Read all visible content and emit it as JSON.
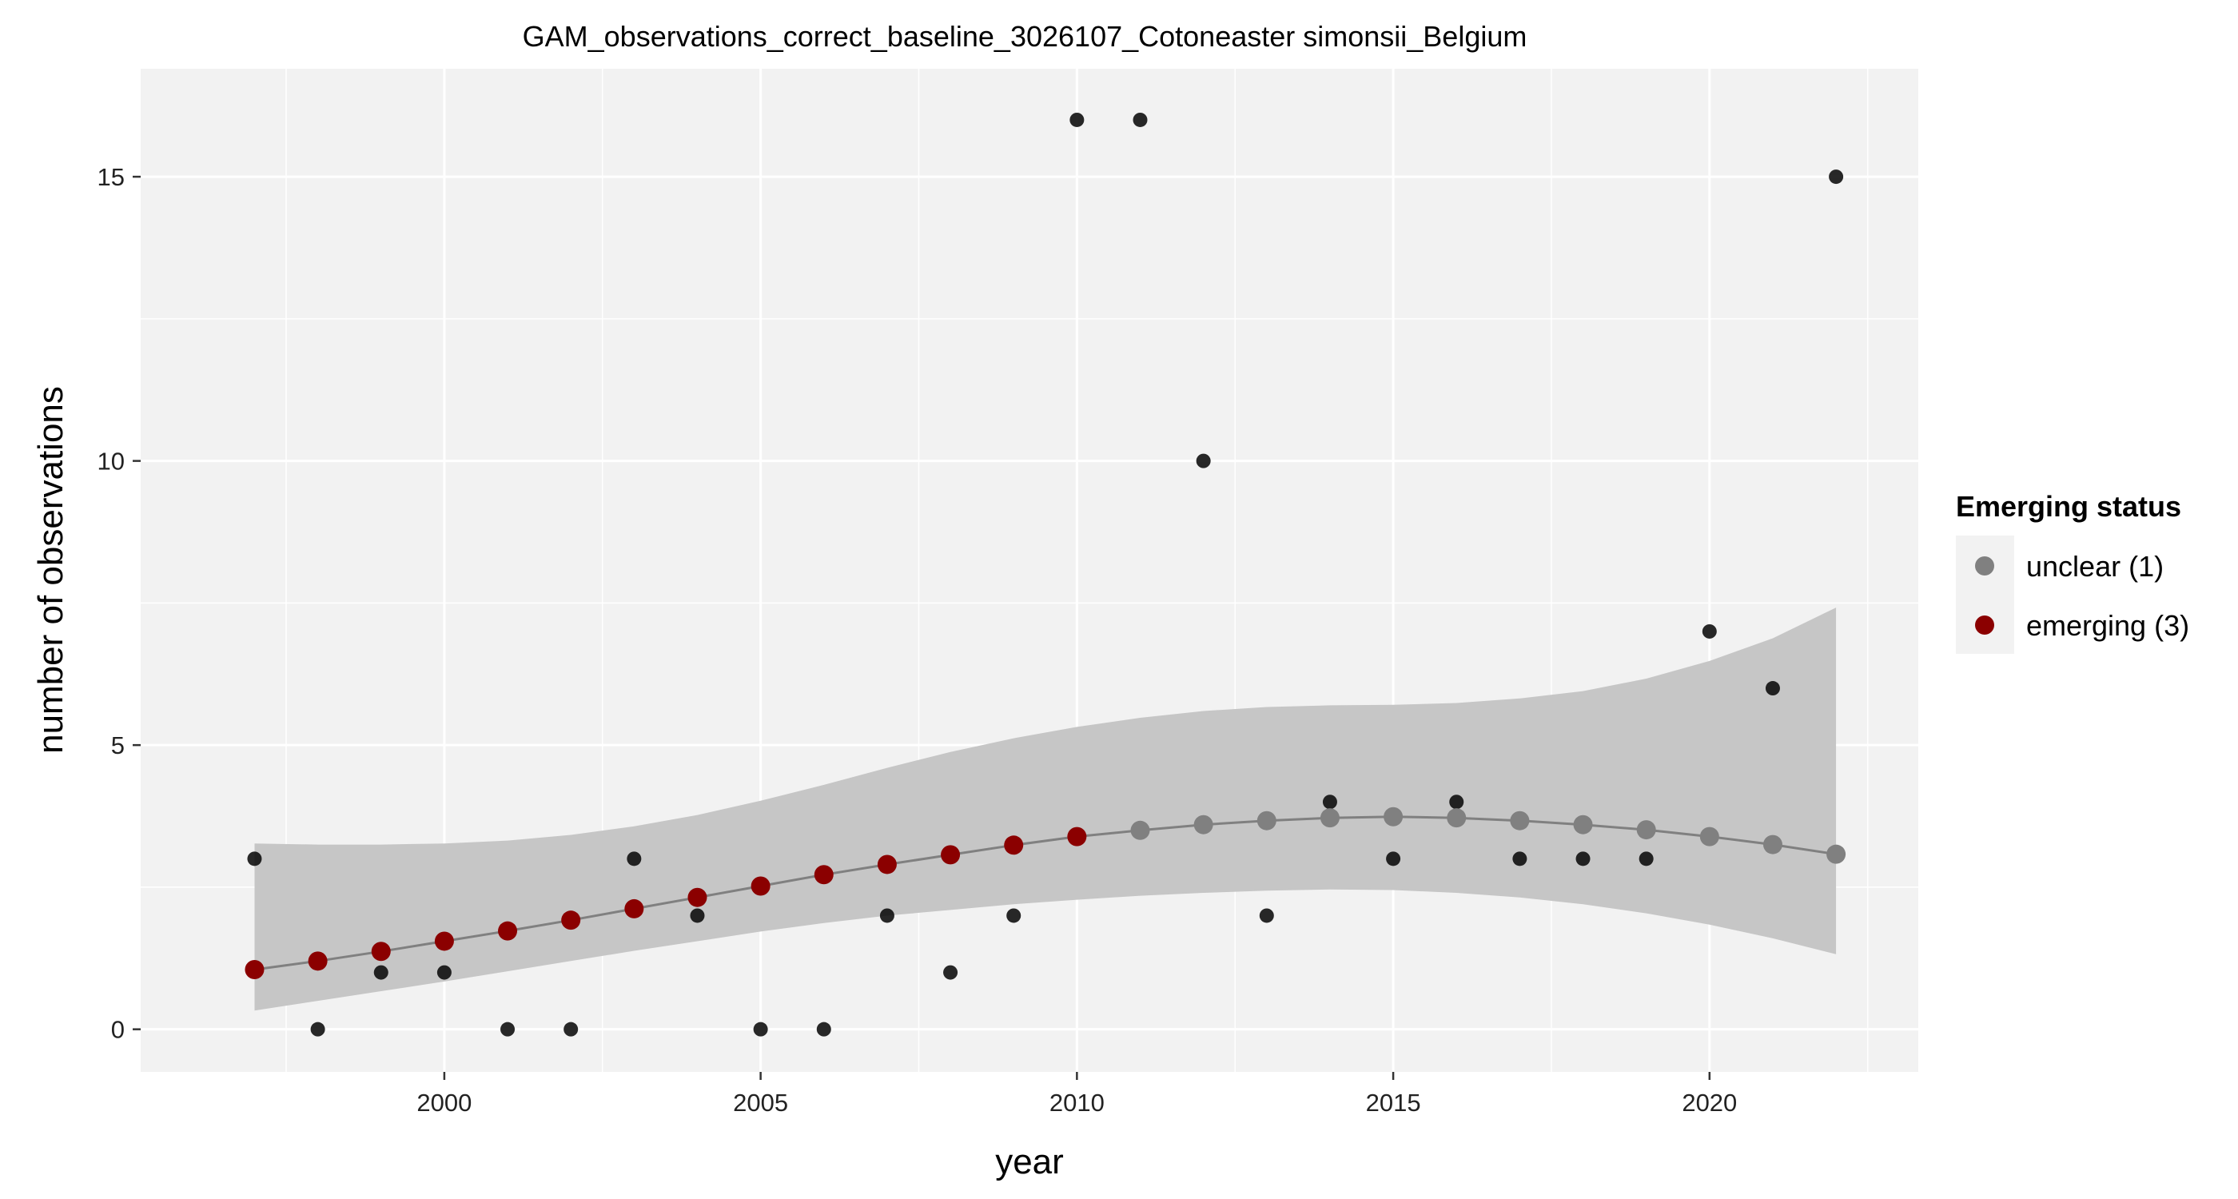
{
  "chart_data": {
    "type": "scatter",
    "title": "GAM_observations_correct_baseline_3026107_Cotoneaster simonsii_Belgium",
    "xlabel": "year",
    "ylabel": "number of observations",
    "xlim": [
      1995.2,
      2023.3
    ],
    "ylim": [
      -0.75,
      16.9
    ],
    "x_ticks": [
      2000,
      2005,
      2010,
      2015,
      2020
    ],
    "y_ticks": [
      0,
      5,
      10,
      15
    ],
    "grid": true,
    "legend_placement": "right",
    "legend": {
      "title": "Emerging status",
      "entries": [
        {
          "label": "unclear (1)",
          "color": "#808080"
        },
        {
          "label": "emerging (3)",
          "color": "#8b0000"
        }
      ]
    },
    "observations": {
      "name": "observed",
      "x": [
        1997,
        1998,
        1999,
        2000,
        2001,
        2002,
        2003,
        2004,
        2005,
        2006,
        2007,
        2008,
        2009,
        2010,
        2011,
        2012,
        2013,
        2014,
        2015,
        2016,
        2017,
        2018,
        2019,
        2020,
        2021,
        2022
      ],
      "y": [
        3,
        0,
        1,
        1,
        0,
        0,
        3,
        2,
        0,
        0,
        2,
        1,
        2,
        16,
        16,
        10,
        2,
        4,
        3,
        4,
        3,
        3,
        3,
        7,
        6,
        15
      ]
    },
    "fit": {
      "x": [
        1997,
        1998,
        1999,
        2000,
        2001,
        2002,
        2003,
        2004,
        2005,
        2006,
        2007,
        2008,
        2009,
        2010,
        2011,
        2012,
        2013,
        2014,
        2015,
        2016,
        2017,
        2018,
        2019,
        2020,
        2021,
        2022
      ],
      "y": [
        1.05,
        1.2,
        1.37,
        1.55,
        1.73,
        1.92,
        2.12,
        2.32,
        2.52,
        2.72,
        2.9,
        3.07,
        3.24,
        3.39,
        3.5,
        3.6,
        3.67,
        3.72,
        3.74,
        3.72,
        3.67,
        3.6,
        3.51,
        3.39,
        3.25,
        3.08
      ],
      "lower": [
        0.33,
        0.5,
        0.67,
        0.84,
        1.02,
        1.2,
        1.38,
        1.55,
        1.72,
        1.87,
        2.0,
        2.1,
        2.2,
        2.28,
        2.35,
        2.4,
        2.44,
        2.46,
        2.45,
        2.4,
        2.32,
        2.2,
        2.04,
        1.84,
        1.6,
        1.32
      ],
      "upper": [
        3.27,
        3.25,
        3.25,
        3.27,
        3.32,
        3.42,
        3.57,
        3.77,
        4.02,
        4.3,
        4.6,
        4.88,
        5.12,
        5.32,
        5.48,
        5.6,
        5.67,
        5.7,
        5.71,
        5.74,
        5.82,
        5.95,
        6.17,
        6.48,
        6.88,
        7.42
      ],
      "status": [
        "emerging (3)",
        "emerging (3)",
        "emerging (3)",
        "emerging (3)",
        "emerging (3)",
        "emerging (3)",
        "emerging (3)",
        "emerging (3)",
        "emerging (3)",
        "emerging (3)",
        "emerging (3)",
        "emerging (3)",
        "emerging (3)",
        "emerging (3)",
        "unclear (1)",
        "unclear (1)",
        "unclear (1)",
        "unclear (1)",
        "unclear (1)",
        "unclear (1)",
        "unclear (1)",
        "unclear (1)",
        "unclear (1)",
        "unclear (1)",
        "unclear (1)",
        "unclear (1)"
      ]
    },
    "colors": {
      "panel": "#f2f2f2",
      "grid": "#ffffff",
      "ribbon": "#c6c6c6",
      "line": "#808080",
      "observed_point": "#0a0a0a"
    }
  }
}
